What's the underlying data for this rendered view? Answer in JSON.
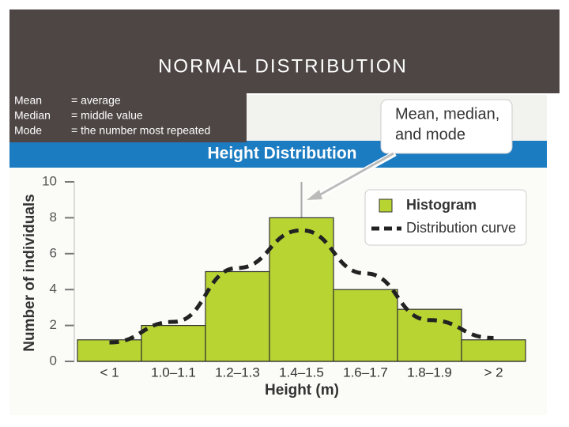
{
  "slide": {
    "title": "NORMAL DISTRIBUTION",
    "definitions": [
      [
        "Mean",
        "= average"
      ],
      [
        "Median",
        "= middle value"
      ],
      [
        "Mode",
        "= the number most repeated"
      ]
    ],
    "callout": [
      "Mean, median,",
      "and mode"
    ]
  },
  "chart_data": {
    "type": "bar",
    "title": "Height Distribution",
    "categories": [
      "< 1",
      "1.0–1.1",
      "1.2–1.3",
      "1.4–1.5",
      "1.6–1.7",
      "1.8–1.9",
      "> 2"
    ],
    "series": [
      {
        "name": "Histogram",
        "color": "#b8d432",
        "values": [
          1.2,
          2,
          5,
          8,
          4,
          2.9,
          1.2
        ]
      },
      {
        "name": "Distribution curve",
        "type": "line",
        "dashed": true,
        "color": "#222222",
        "values": [
          1.05,
          2.2,
          5.2,
          7.3,
          4.9,
          2.3,
          1.3
        ]
      }
    ],
    "ylim": [
      0,
      10
    ],
    "yticks": [
      0,
      2,
      4,
      6,
      8,
      10
    ],
    "xlabel": "Height (m)",
    "ylabel": "Number of individuals"
  }
}
